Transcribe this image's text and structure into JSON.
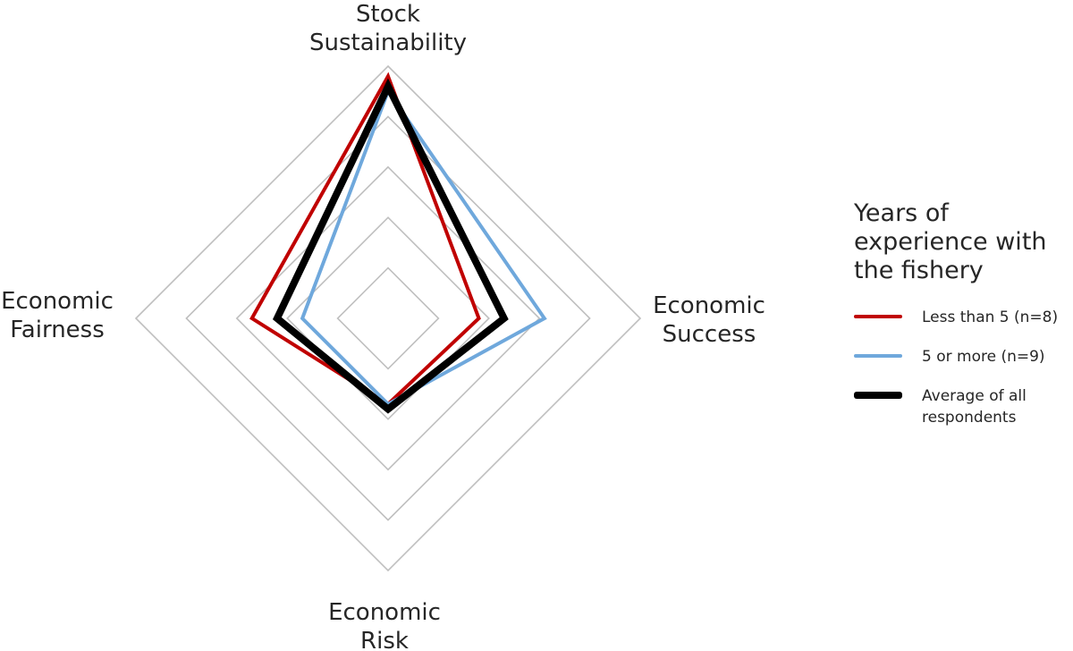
{
  "chart_data": {
    "type": "radar",
    "axes": [
      "Stock Sustainability",
      "Economic Success",
      "Economic Risk",
      "Economic Fairness"
    ],
    "axis_label_lines": [
      [
        "Stock",
        "Sustainability"
      ],
      [
        "Economic",
        "Success"
      ],
      [
        "Economic",
        "Risk"
      ],
      [
        "Economic",
        "Fairness"
      ]
    ],
    "scale": {
      "min": 0,
      "max": 5,
      "rings": [
        1,
        2,
        3,
        4,
        5
      ]
    },
    "series": [
      {
        "name": "Less than 5 (n=8)",
        "color": "#C00000",
        "values": [
          4.8,
          1.8,
          1.7,
          2.7
        ]
      },
      {
        "name": "5 or more (n=9)",
        "color": "#6FA8DC",
        "values": [
          4.5,
          3.1,
          1.7,
          1.7
        ]
      },
      {
        "name": "Average of all respondents",
        "color": "#000000",
        "values": [
          4.6,
          2.3,
          1.8,
          2.2
        ]
      }
    ],
    "grid": true,
    "legend_title": "Years of experience with the fishery",
    "legend_position": "right"
  }
}
